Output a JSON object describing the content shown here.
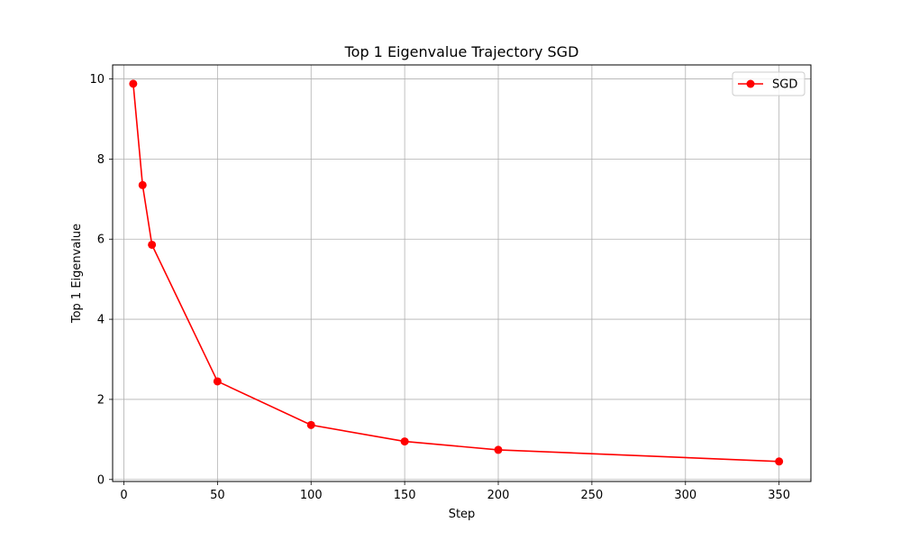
{
  "chart_data": {
    "type": "line",
    "title": "Top 1 Eigenvalue Trajectory SGD",
    "xlabel": "Step",
    "ylabel": "Top 1 Eigenvalue",
    "xlim": [
      -6,
      367
    ],
    "ylim": [
      -0.05,
      10.35
    ],
    "xticks": [
      0,
      50,
      100,
      150,
      200,
      250,
      300,
      350
    ],
    "yticks": [
      0,
      2,
      4,
      6,
      8,
      10
    ],
    "grid": true,
    "legend_position": "top-right",
    "series": [
      {
        "name": "SGD",
        "color": "#ff0000",
        "marker": "circle",
        "x": [
          5,
          10,
          15,
          50,
          100,
          150,
          200,
          350
        ],
        "y": [
          9.88,
          7.35,
          5.86,
          2.45,
          1.36,
          0.95,
          0.74,
          0.45
        ]
      }
    ]
  }
}
